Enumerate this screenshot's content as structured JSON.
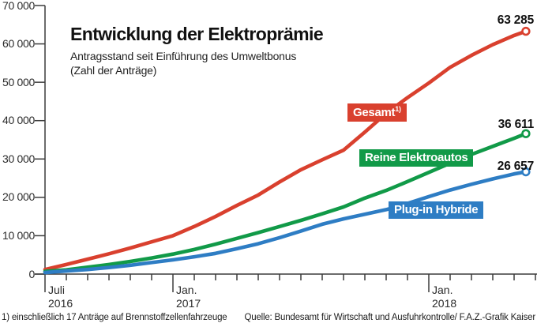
{
  "header": {
    "title": "Entwicklung der Elektroprämie",
    "subtitle_line1": "Antragsstand seit Einführung des Umweltbonus",
    "subtitle_line2": "(Zahl der Anträge)"
  },
  "footer": {
    "footnote": "1) einschließlich 17 Anträge auf Brennstoffzellenfahrzeuge",
    "source": "Quelle: Bundesamt für Wirtschaft und Ausfuhrkontrolle/ F.A.Z.-Grafik Kaiser"
  },
  "colors": {
    "gesamt": "#d9402e",
    "reine_elektroautos": "#119a48",
    "plugin_hybride": "#2e7dc4",
    "axis": "#3c3c3c"
  },
  "chart_data": {
    "type": "line",
    "title": "Entwicklung der Elektroprämie",
    "x_unit": "Monate seit Juli 2016",
    "grid": false,
    "y_axis": {
      "min": 0,
      "max": 70000,
      "step": 10000,
      "tick_labels": [
        "70 000",
        "60 000",
        "50 000",
        "40 000",
        "30 000",
        "20 000",
        "10 000",
        "0"
      ]
    },
    "x_axis": {
      "tick_every_months": 1,
      "total_month_ticks": 24,
      "labeled_ticks": [
        {
          "month": 0,
          "line1": "Juli",
          "line2": "2016"
        },
        {
          "month": 6,
          "line1": "Jan.",
          "line2": "2017"
        },
        {
          "month": 18,
          "line1": "Jan.",
          "line2": "2018"
        }
      ]
    },
    "series": [
      {
        "name": "Gesamt",
        "footnote_marker": "1)",
        "color": "#d9402e",
        "end_value": 63285,
        "end_label": "63 285",
        "points": [
          [
            0,
            1200
          ],
          [
            1,
            2500
          ],
          [
            2,
            3900
          ],
          [
            3,
            5300
          ],
          [
            4,
            6800
          ],
          [
            5,
            8400
          ],
          [
            6,
            10000
          ],
          [
            7,
            12400
          ],
          [
            8,
            15000
          ],
          [
            9,
            17900
          ],
          [
            10,
            20600
          ],
          [
            11,
            24000
          ],
          [
            12,
            27200
          ],
          [
            13,
            29800
          ],
          [
            14,
            32300
          ],
          [
            15,
            37000
          ],
          [
            16,
            41900
          ],
          [
            17,
            46000
          ],
          [
            18,
            49800
          ],
          [
            19,
            53900
          ],
          [
            20,
            57000
          ],
          [
            21,
            59800
          ],
          [
            22,
            62200
          ],
          [
            22.55,
            63285
          ]
        ]
      },
      {
        "name": "Reine Elektroautos",
        "footnote_marker": "",
        "color": "#119a48",
        "end_value": 36611,
        "end_label": "36 611",
        "points": [
          [
            0,
            700
          ],
          [
            1,
            1100
          ],
          [
            2,
            1800
          ],
          [
            3,
            2500
          ],
          [
            4,
            3300
          ],
          [
            5,
            4200
          ],
          [
            6,
            5200
          ],
          [
            7,
            6400
          ],
          [
            8,
            7800
          ],
          [
            9,
            9300
          ],
          [
            10,
            10800
          ],
          [
            11,
            12400
          ],
          [
            12,
            14000
          ],
          [
            13,
            15700
          ],
          [
            14,
            17500
          ],
          [
            15,
            19800
          ],
          [
            16,
            21800
          ],
          [
            17,
            24100
          ],
          [
            18,
            26500
          ],
          [
            19,
            28900
          ],
          [
            20,
            31200
          ],
          [
            21,
            33300
          ],
          [
            22,
            35400
          ],
          [
            22.55,
            36611
          ]
        ]
      },
      {
        "name": "Plug-in Hybride",
        "footnote_marker": "",
        "color": "#2e7dc4",
        "end_value": 26657,
        "end_label": "26 657",
        "points": [
          [
            0,
            400
          ],
          [
            1,
            800
          ],
          [
            2,
            1200
          ],
          [
            3,
            1700
          ],
          [
            4,
            2300
          ],
          [
            5,
            3000
          ],
          [
            6,
            3700
          ],
          [
            7,
            4500
          ],
          [
            8,
            5400
          ],
          [
            9,
            6600
          ],
          [
            10,
            7900
          ],
          [
            11,
            9500
          ],
          [
            12,
            11200
          ],
          [
            13,
            13000
          ],
          [
            14,
            14400
          ],
          [
            15,
            15600
          ],
          [
            16,
            16800
          ],
          [
            17,
            18400
          ],
          [
            18,
            20200
          ],
          [
            19,
            21900
          ],
          [
            20,
            23400
          ],
          [
            21,
            24800
          ],
          [
            22,
            26100
          ],
          [
            22.55,
            26657
          ]
        ]
      }
    ]
  }
}
